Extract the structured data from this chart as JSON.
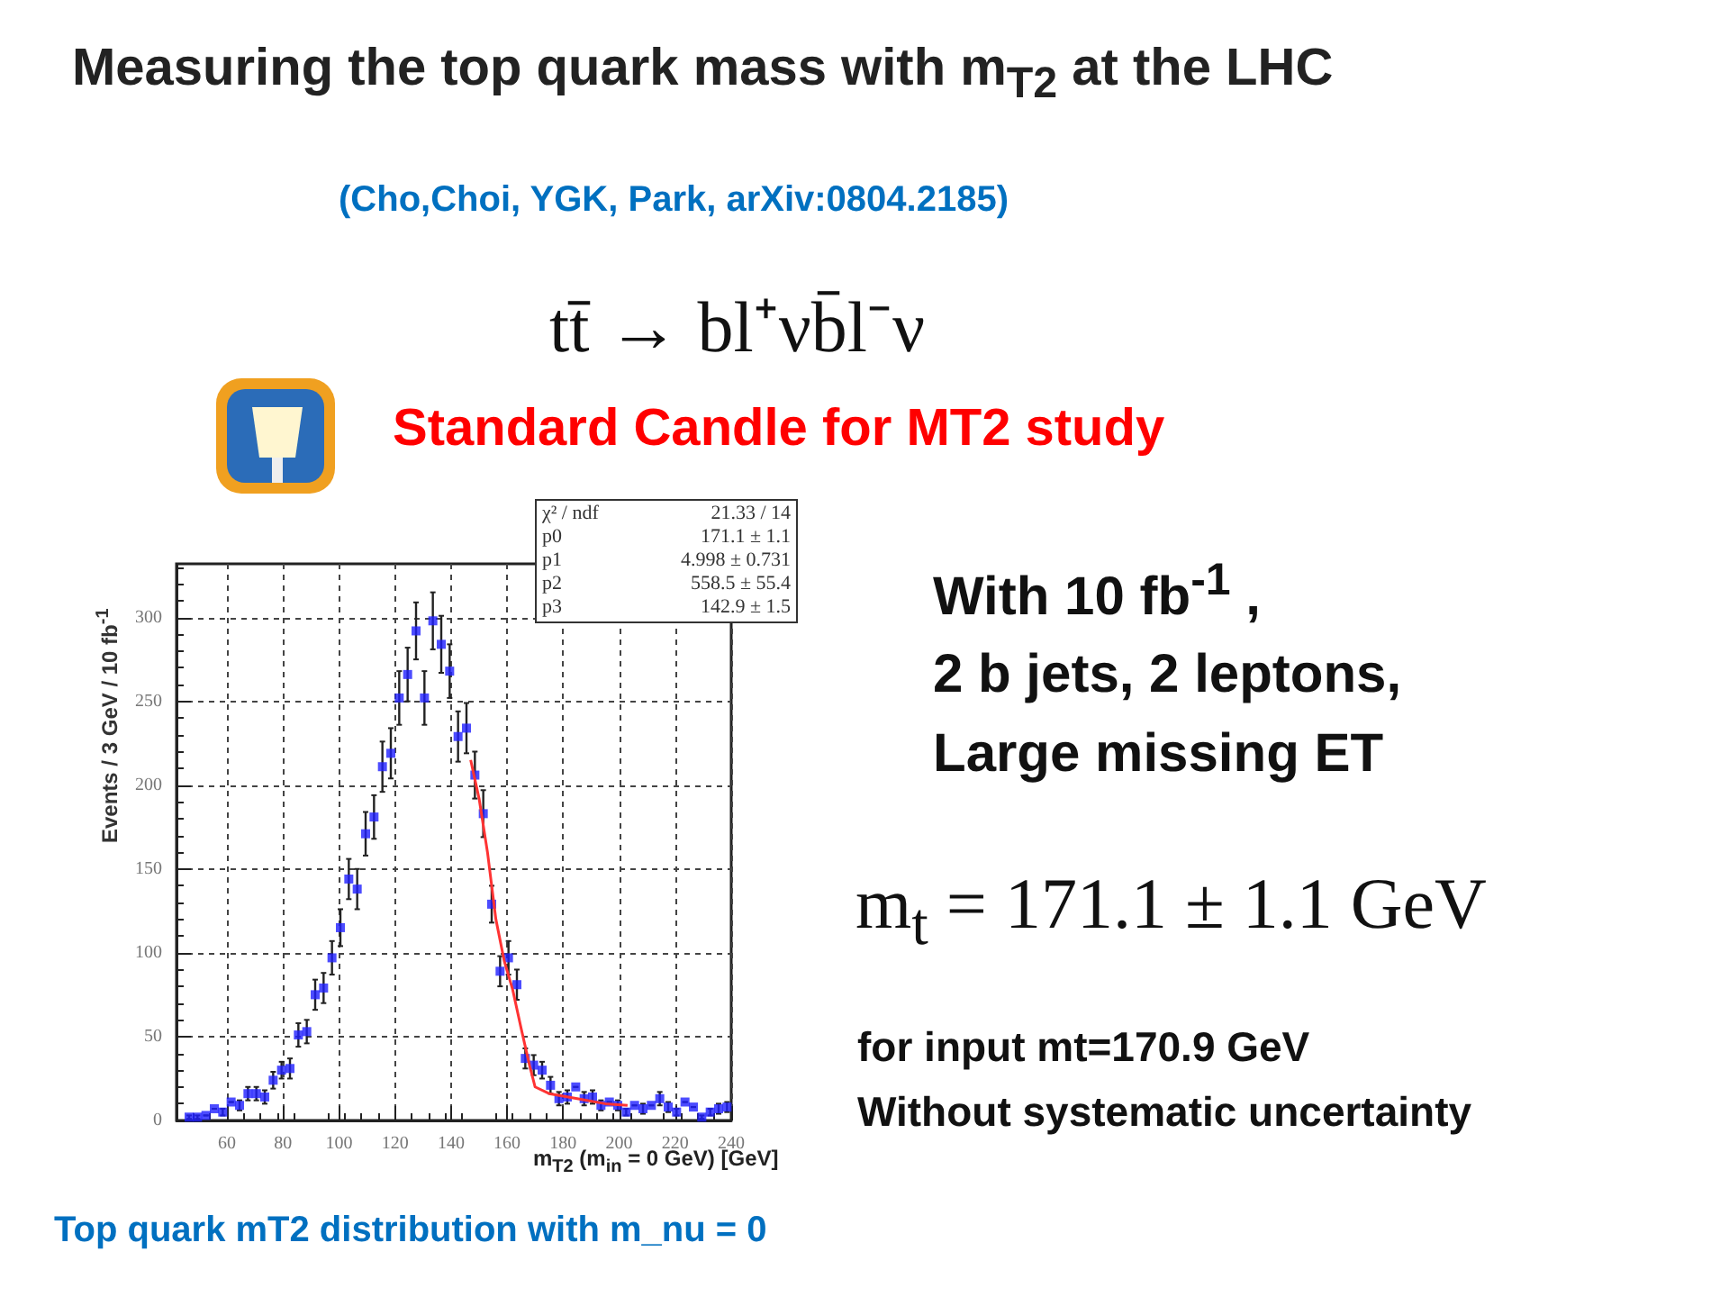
{
  "chart_data": {
    "type": "scatter",
    "title": "Measuring the top quark mass with m$_{T2}$ at the LHC",
    "subtitle": "(Cho,Choi, YGK, Park, arXiv:0804.2185)",
    "xlabel": "m$_{T2}$ (m$_{in}$ = 0 GeV) [GeV]",
    "ylabel": "Events / 3 GeV / 10 fb$^{-1}$",
    "annotations": [
      "tt̄ → bl⁺νb̄l⁻ν",
      "Standard Candle for MT2 study",
      "With 10 fb$^{-1}$ ,",
      "2 b jets, 2 leptons,",
      "Large missing ET",
      "m$_{t}$ = 171.1 ± 1.1 GeV",
      "for input mt=170.9 GeV",
      "Without systematic uncertainty",
      "Top quark mT2 distribution with m_nu = 0",
      "χ² / ndf",
      "21.33 / 14",
      "p0",
      "171.1 ± 1.1",
      "p1",
      "4.998 ± 0.731",
      "p2",
      "558.5 ± 55.4",
      "p3",
      "142.9 ± 1.5"
    ],
    "xlim": [
      42,
      240
    ],
    "xticks": [
      60,
      80,
      100,
      120,
      140,
      160,
      180,
      200,
      220,
      240
    ],
    "ylim": [
      0,
      332
    ],
    "yticks": [
      0,
      50,
      100,
      150,
      200,
      250,
      300
    ],
    "grid": true,
    "series": [
      {
        "color": "#1f1fff",
        "marker": "square",
        "x": [
          46.5,
          49.5,
          52.5,
          55.5,
          58.5,
          61.5,
          64.5,
          67.5,
          70.5,
          73.5,
          76.5,
          79.5,
          82.5,
          85.5,
          88.5,
          91.5,
          94.5,
          97.5,
          100.5,
          103.5,
          106.5,
          109.5,
          112.5,
          115.5,
          118.5,
          121.5,
          124.5,
          127.5,
          130.5,
          133.5,
          136.5,
          139.5,
          142.5,
          145.5,
          148.5,
          151.5,
          154.5,
          157.5,
          160.5,
          163.5,
          166.5,
          169.5,
          172.5,
          175.5,
          178.5,
          181.5,
          184.5,
          187.5,
          190.5,
          193.5,
          196.5,
          199.5,
          202.5,
          205.5,
          208.5,
          211.5,
          214.5,
          217.5,
          220.5,
          223.5,
          226.5,
          229.5,
          232.5,
          235.5,
          238.5
        ],
        "values": [
          2,
          2,
          3,
          7,
          5,
          11,
          9,
          16,
          16,
          14,
          24,
          30,
          31,
          51,
          53,
          75,
          79,
          97,
          115,
          144,
          138,
          171,
          181,
          211,
          219,
          252,
          266,
          292,
          252,
          298,
          284,
          268,
          229,
          234,
          206,
          183,
          129,
          89,
          97,
          81,
          37,
          33,
          30,
          21,
          13,
          14,
          20,
          13,
          14,
          9,
          11,
          9,
          5,
          9,
          7,
          9,
          13,
          8,
          5,
          11,
          8,
          2,
          5,
          7,
          8
        ],
        "errors": [
          1,
          1,
          null,
          null,
          2,
          null,
          3,
          4,
          4,
          4,
          5,
          5,
          6,
          7,
          7,
          9,
          9,
          10,
          11,
          12,
          12,
          13,
          13,
          15,
          15,
          16,
          16,
          17,
          16,
          17,
          17,
          16,
          15,
          15,
          14,
          14,
          11,
          9,
          10,
          9,
          6,
          6,
          5,
          5,
          4,
          4,
          null,
          4,
          4,
          3,
          null,
          3,
          2,
          null,
          3,
          null,
          4,
          3,
          2,
          null,
          null,
          1,
          2,
          3,
          3
        ]
      },
      {
        "type": "line",
        "color": "#ff3333",
        "line_style": "solid",
        "x": [
          147,
          150,
          153,
          156,
          159,
          162,
          165,
          168,
          170,
          175,
          185,
          195,
          203
        ],
        "values": [
          215,
          192,
          160,
          120,
          95,
          78,
          55,
          33,
          20,
          16,
          13,
          10,
          9
        ]
      }
    ]
  }
}
